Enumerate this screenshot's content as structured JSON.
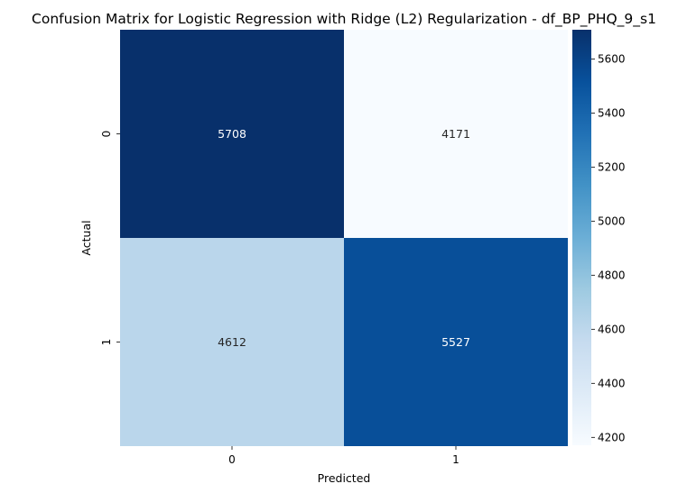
{
  "chart_data": {
    "type": "heatmap",
    "title": "Confusion Matrix for Logistic Regression with Ridge (L2) Regularization - df_BP_PHQ_9_s1",
    "xlabel": "Predicted",
    "ylabel": "Actual",
    "x_categories": [
      "0",
      "1"
    ],
    "y_categories": [
      "0",
      "1"
    ],
    "values": [
      [
        5708,
        4171
      ],
      [
        4612,
        5527
      ]
    ],
    "value_labels": [
      [
        "5708",
        "4171"
      ],
      [
        "4612",
        "5527"
      ]
    ],
    "colormap": "Blues",
    "colorbar": {
      "range": [
        4171,
        5708
      ],
      "ticks": [
        4200,
        4400,
        4600,
        4800,
        5000,
        5200,
        5400,
        5600
      ],
      "tick_labels": [
        "4200",
        "4400",
        "4600",
        "4800",
        "5000",
        "5200",
        "5400",
        "5600"
      ]
    }
  }
}
